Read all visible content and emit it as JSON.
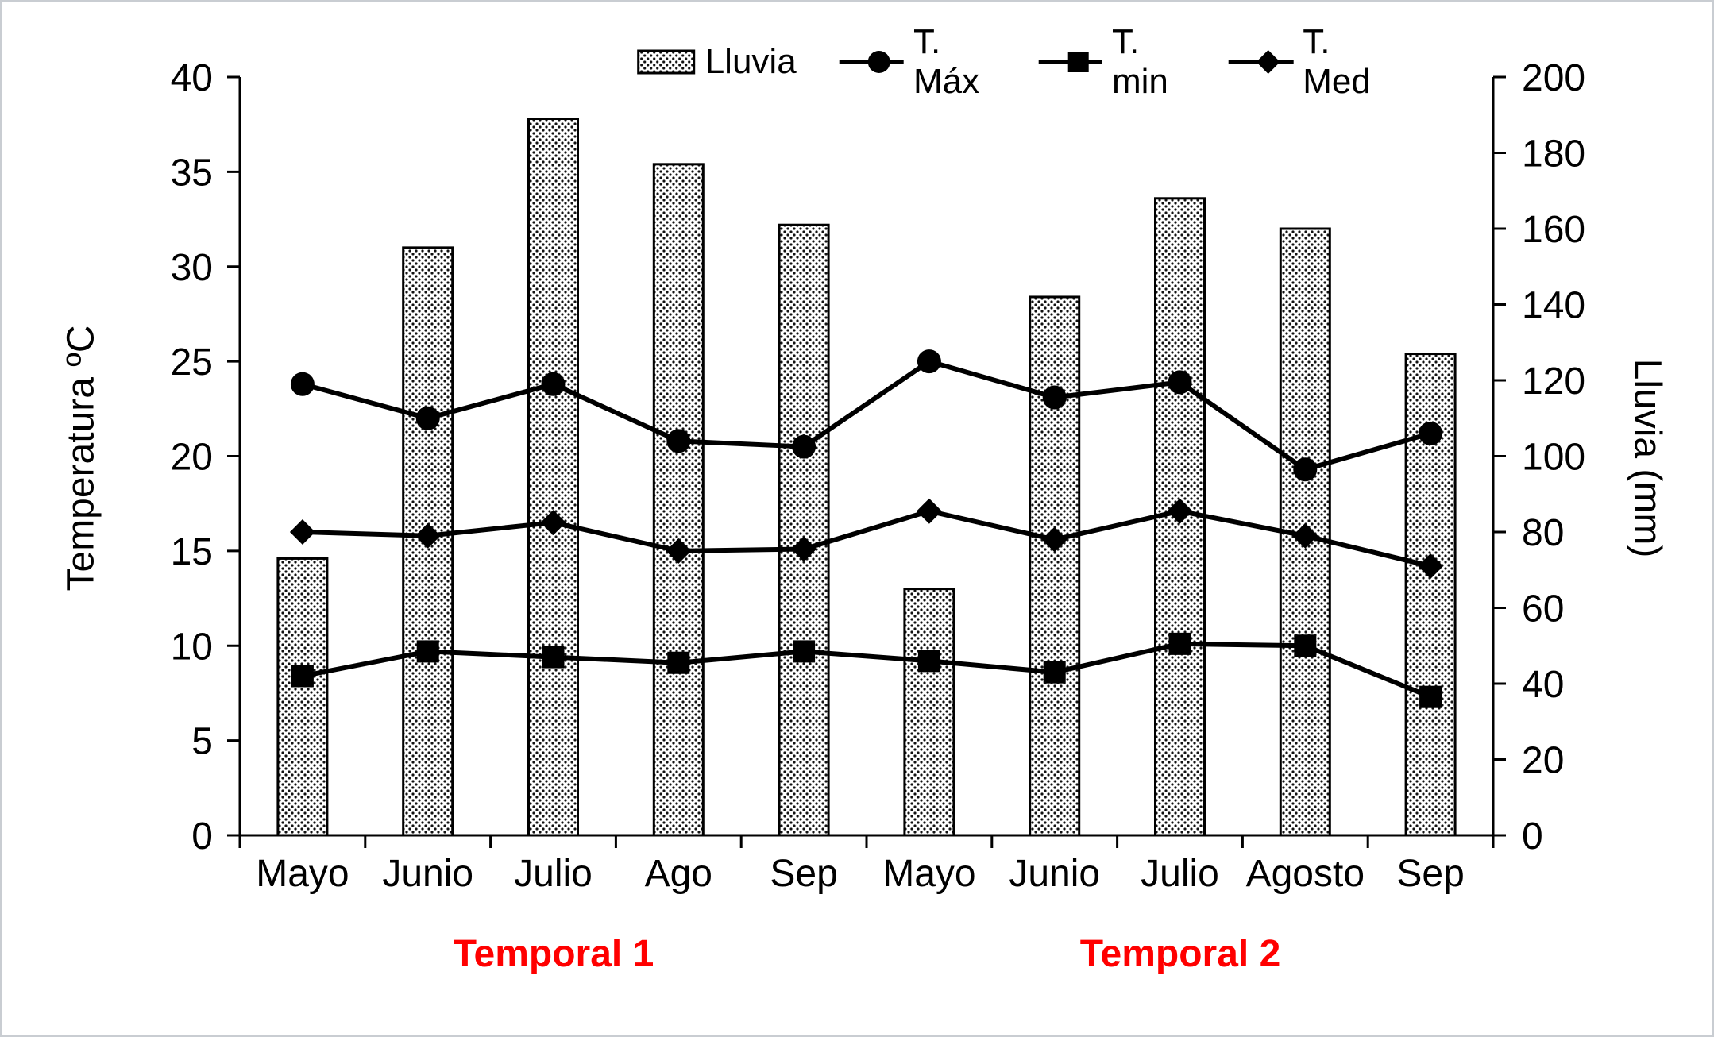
{
  "chart_data": {
    "type": "bar+line combo",
    "legend_position": "top",
    "categories": [
      "Mayo",
      "Junio",
      "Julio",
      "Ago",
      "Sep",
      "Mayo",
      "Junio",
      "Julio",
      "Agosto",
      "Sep"
    ],
    "bar_series": {
      "name": "Lluvia",
      "axis": "right",
      "values": [
        73,
        155,
        189,
        177,
        161,
        65,
        142,
        168,
        160,
        127
      ]
    },
    "line_series": [
      {
        "name": "T. Máx",
        "marker": "circle",
        "axis": "left",
        "values": [
          23.8,
          22.0,
          23.8,
          20.8,
          20.5,
          25.0,
          23.1,
          23.9,
          19.3,
          21.2
        ]
      },
      {
        "name": "T. min",
        "marker": "square",
        "axis": "left",
        "values": [
          8.4,
          9.7,
          9.4,
          9.1,
          9.7,
          9.2,
          8.6,
          10.1,
          10.0,
          7.3
        ]
      },
      {
        "name": "T. Med",
        "marker": "diamond",
        "axis": "left",
        "values": [
          16.0,
          15.8,
          16.5,
          15.0,
          15.1,
          17.1,
          15.6,
          17.1,
          15.8,
          14.2
        ]
      }
    ],
    "left_axis": {
      "label": "Temperatura ºC",
      "min": 0,
      "max": 40,
      "step": 5,
      "ticks": [
        0,
        5,
        10,
        15,
        20,
        25,
        30,
        35,
        40
      ]
    },
    "right_axis": {
      "label": "Lluvia (mm)",
      "min": 0,
      "max": 200,
      "step": 20,
      "ticks": [
        0,
        20,
        40,
        60,
        80,
        100,
        120,
        140,
        160,
        180,
        200
      ]
    },
    "legend": [
      "Lluvia",
      "T. Máx",
      "T. min",
      "T. Med"
    ],
    "group_labels": [
      {
        "label": "Temporal 1",
        "from": 0,
        "to": 4
      },
      {
        "label": "Temporal 2",
        "from": 5,
        "to": 9
      }
    ],
    "colors": {
      "ink": "#000000",
      "group_label": "#ff0000",
      "background": "#ffffff",
      "frame_border": "#c9cdd2"
    },
    "grid": "off"
  }
}
